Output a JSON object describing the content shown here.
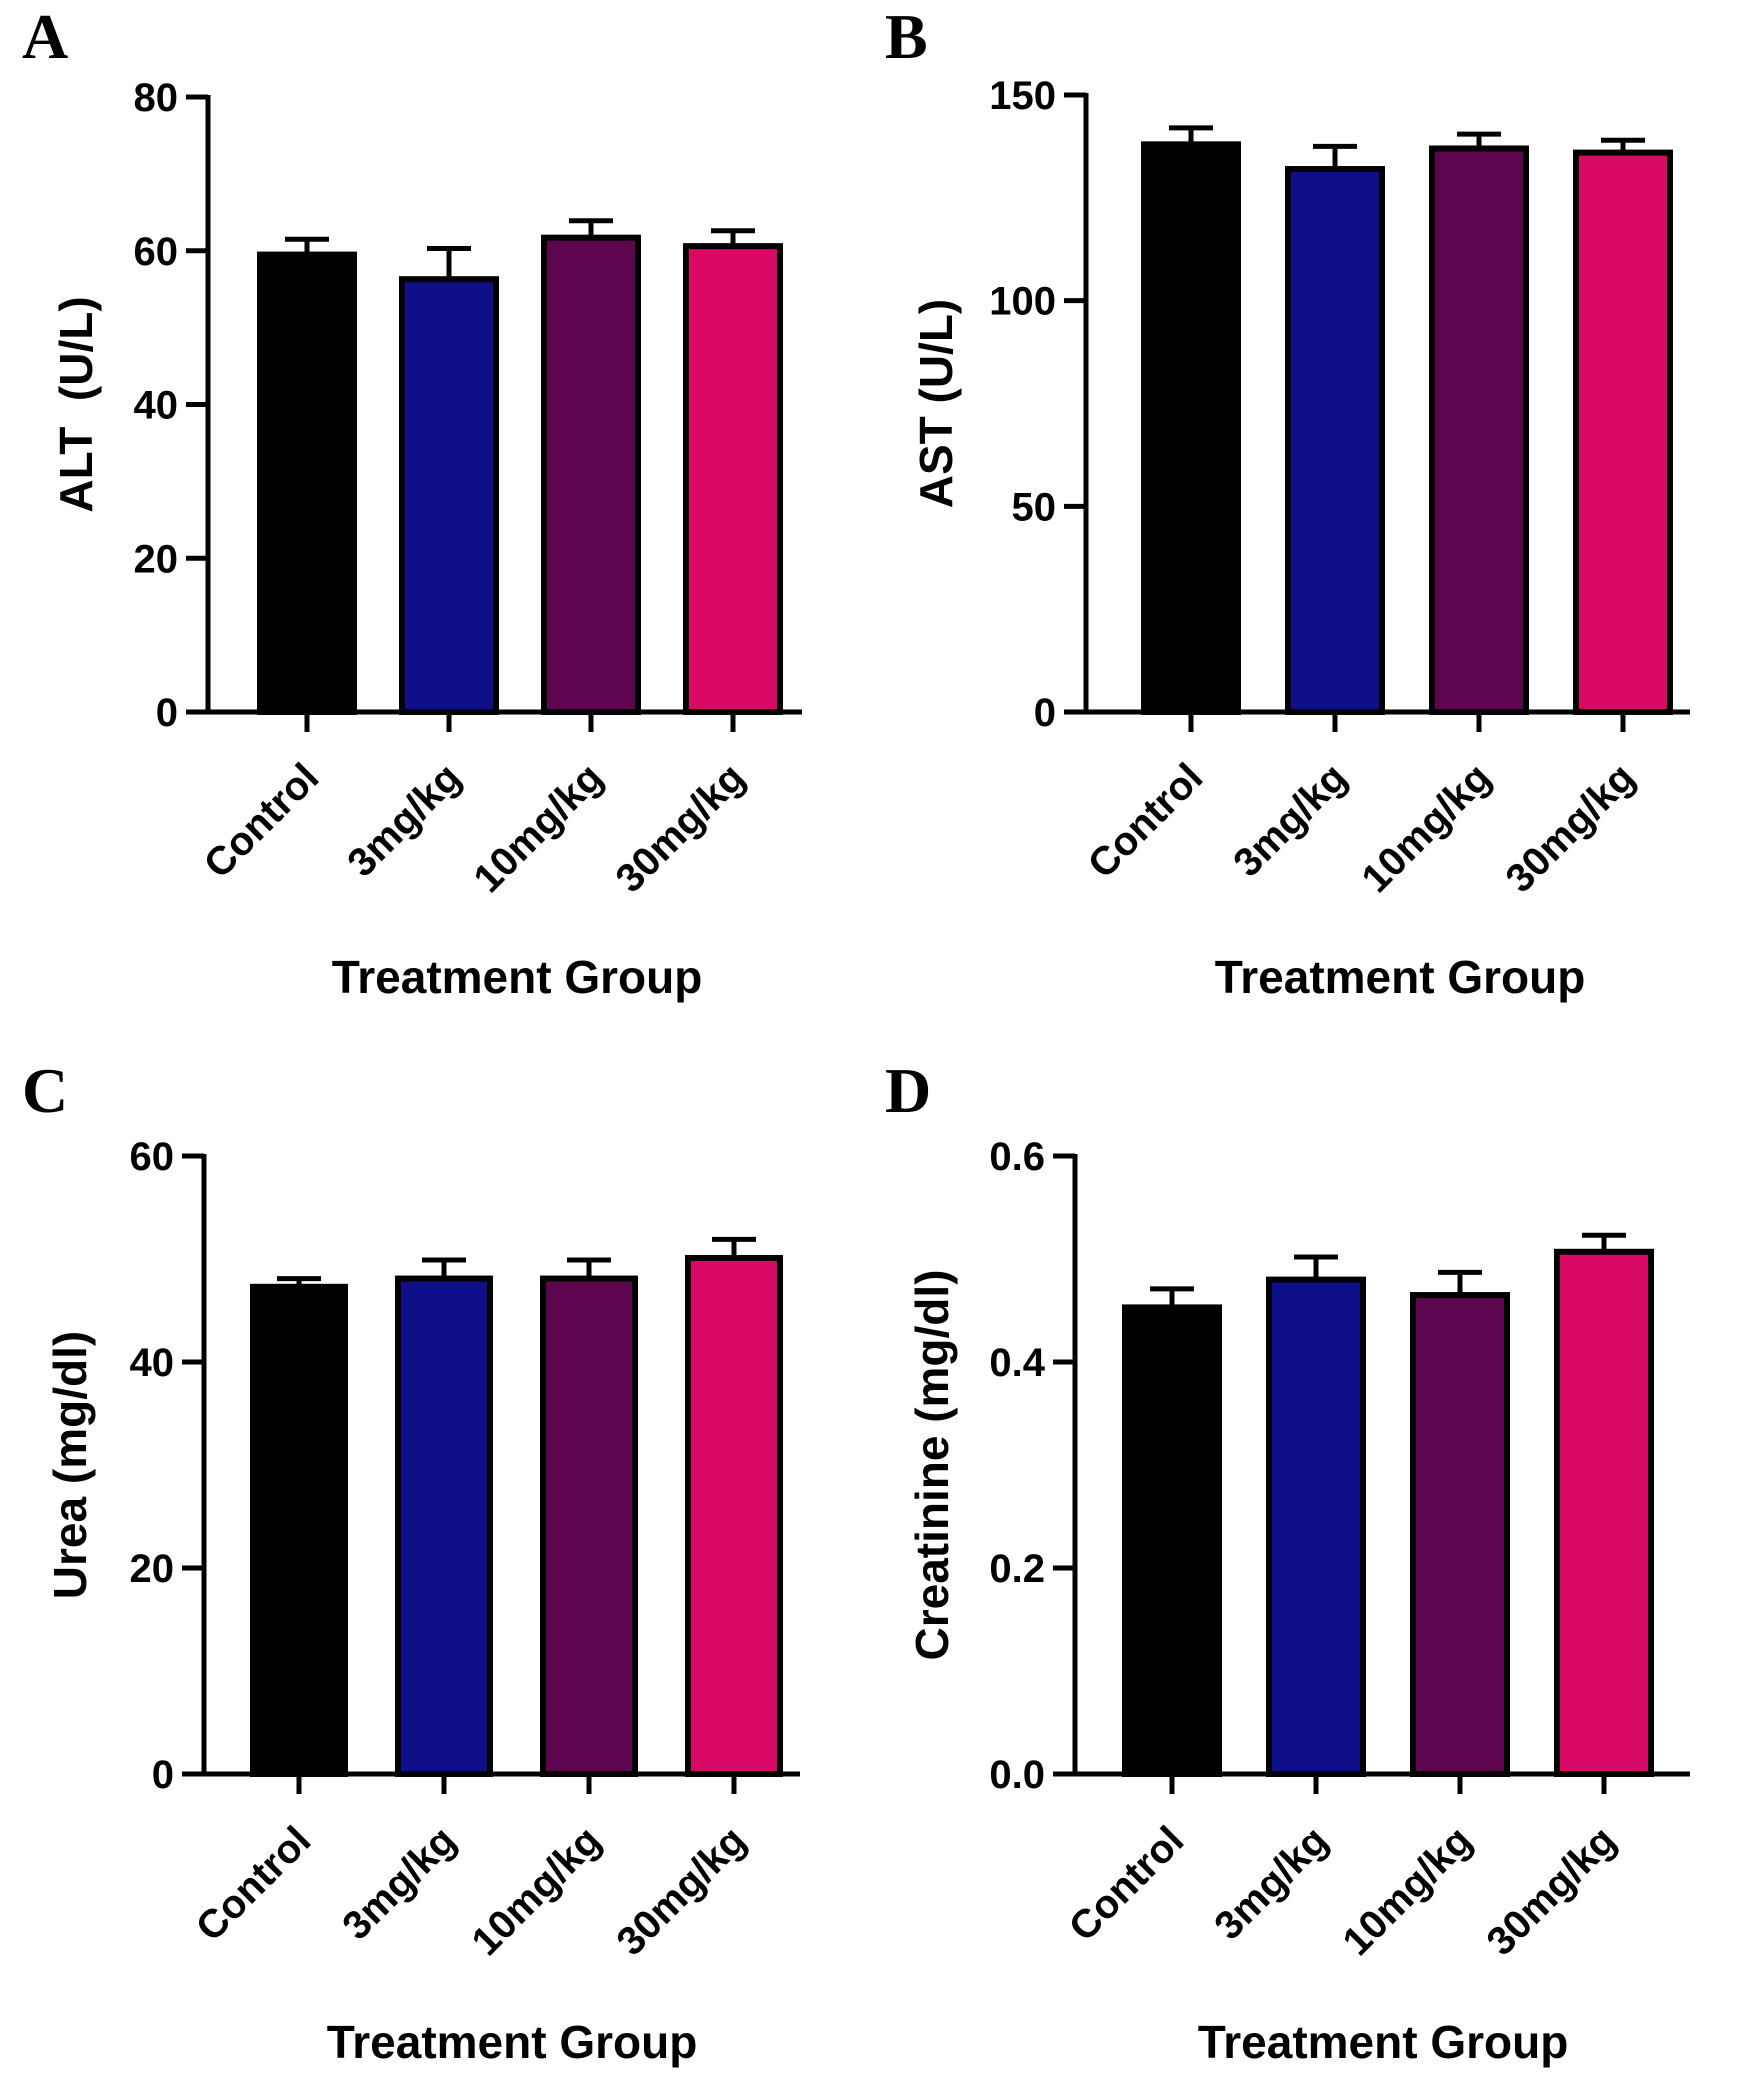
{
  "chart_data": [
    {
      "panel": "A",
      "type": "bar",
      "categories": [
        "Control",
        "3mg/kg",
        "10mg/kg",
        "30mg/kg"
      ],
      "values": [
        59.5,
        56.3,
        61.7,
        60.6
      ],
      "errors": [
        2.0,
        4.0,
        2.2,
        2.0
      ],
      "colors": [
        "#000000",
        "#0f0f8a",
        "#5e0550",
        "#d80a65"
      ],
      "title": "",
      "xlabel": "Treatment Group",
      "ylabel": "ALT  (U/L)",
      "ylim": [
        0,
        80
      ],
      "yticks": [
        0,
        20,
        40,
        60,
        80
      ],
      "ytick_labels": [
        "0",
        "20",
        "40",
        "60",
        "80"
      ]
    },
    {
      "panel": "B",
      "type": "bar",
      "categories": [
        "Control",
        "3mg/kg",
        "10mg/kg",
        "30mg/kg"
      ],
      "values": [
        138,
        132,
        137,
        136
      ],
      "errors": [
        4,
        5.5,
        3.5,
        3
      ],
      "colors": [
        "#000000",
        "#0f0f8a",
        "#5e0550",
        "#d80a65"
      ],
      "title": "",
      "xlabel": "Treatment Group",
      "ylabel": "AST (U/L)",
      "ylim": [
        0,
        150
      ],
      "yticks": [
        0,
        50,
        100,
        150
      ],
      "ytick_labels": [
        "0",
        "50",
        "100",
        "150"
      ]
    },
    {
      "panel": "C",
      "type": "bar",
      "categories": [
        "Control",
        "3mg/kg",
        "10mg/kg",
        "30mg/kg"
      ],
      "values": [
        47.3,
        48.1,
        48.1,
        50.1
      ],
      "errors": [
        0.8,
        1.8,
        1.8,
        1.8
      ],
      "colors": [
        "#000000",
        "#0f0f8a",
        "#5e0550",
        "#d80a65"
      ],
      "title": "",
      "xlabel": "Treatment Group",
      "ylabel": "Urea (mg/dl)",
      "ylim": [
        0,
        60
      ],
      "yticks": [
        0,
        20,
        40,
        60
      ],
      "ytick_labels": [
        "0",
        "20",
        "40",
        "60"
      ]
    },
    {
      "panel": "D",
      "type": "bar",
      "categories": [
        "Control",
        "3mg/kg",
        "10mg/kg",
        "30mg/kg"
      ],
      "values": [
        0.453,
        0.48,
        0.465,
        0.507
      ],
      "errors": [
        0.018,
        0.022,
        0.022,
        0.016
      ],
      "colors": [
        "#000000",
        "#0f0f8a",
        "#5e0550",
        "#d80a65"
      ],
      "title": "",
      "xlabel": "Treatment Group",
      "ylabel": "Creatinine (mg/dl)",
      "ylim": [
        0,
        0.6
      ],
      "yticks": [
        0,
        0.2,
        0.4,
        0.6
      ],
      "ytick_labels": [
        "0.0",
        "0.2",
        "0.4",
        "0.6"
      ]
    }
  ]
}
